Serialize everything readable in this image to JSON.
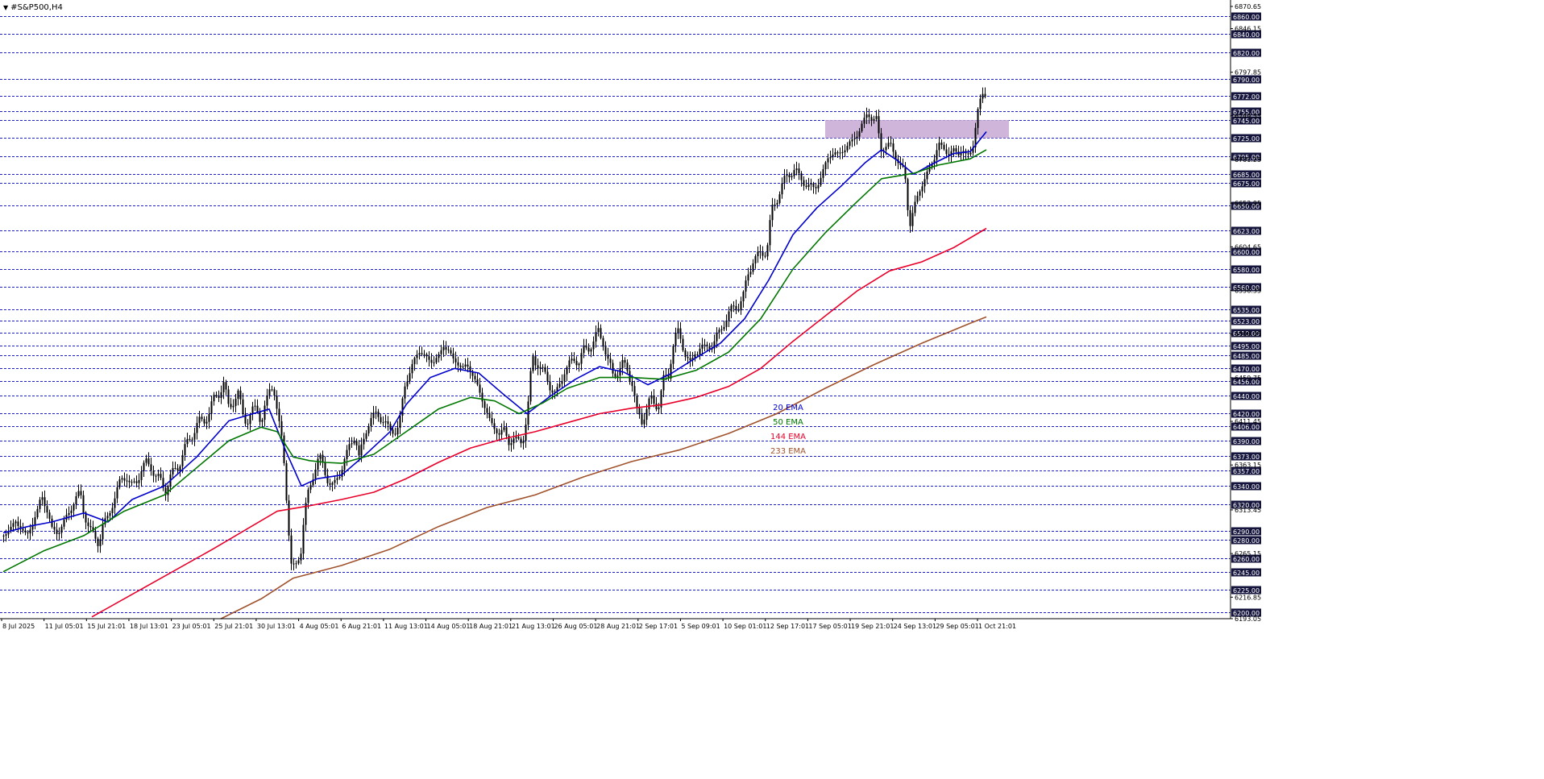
{
  "window": {
    "title": "#S&P500,H4"
  },
  "chart_data": {
    "type": "candlestick",
    "symbol": "#S&P500",
    "timeframe": "H4",
    "ylim": [
      6193.05,
      6870.65
    ],
    "grid": true,
    "x_tick_labels": [
      "8 Jul 2025",
      "11 Jul 05:01",
      "15 Jul 21:01",
      "18 Jul 13:01",
      "23 Jul 05:01",
      "25 Jul 21:01",
      "30 Jul 13:01",
      "4 Aug 05:01",
      "6 Aug 21:01",
      "11 Aug 13:01",
      "14 Aug 05:01",
      "18 Aug 21:01",
      "21 Aug 13:01",
      "26 Aug 05:01",
      "28 Aug 21:01",
      "2 Sep 17:01",
      "5 Sep 09:01",
      "10 Sep 01:01",
      "12 Sep 17:01",
      "17 Sep 05:01",
      "19 Sep 21:01",
      "24 Sep 13:01",
      "29 Sep 05:01",
      "1 Oct 21:01"
    ],
    "price_levels": [
      "6860.00",
      "6840.00",
      "6820.00",
      "6790.00",
      "6772.00",
      "6755.00",
      "6745.00",
      "6725.00",
      "6705.00",
      "6685.00",
      "6675.00",
      "6650.00",
      "6623.00",
      "6600.00",
      "6580.00",
      "6560.00",
      "6535.00",
      "6523.00",
      "6510.00",
      "6495.00",
      "6485.00",
      "6470.00",
      "6456.00",
      "6440.00",
      "6420.00",
      "6406.00",
      "6390.00",
      "6373.00",
      "6357.00",
      "6340.00",
      "6320.00",
      "6290.00",
      "6280.00",
      "6260.00",
      "6245.00",
      "6225.00",
      "6200.00"
    ],
    "scale_labels": [
      "6870.65",
      "6846.15",
      "6797.85",
      "6749.55",
      "6701.25",
      "6652.95",
      "6604.65",
      "6556.35",
      "6508.05",
      "6459.75",
      "6411.45",
      "6363.15",
      "6313.45",
      "6265.15",
      "6216.85",
      "6193.05"
    ],
    "zone": {
      "low": 6725,
      "high": 6745,
      "color": "#c8a8d4"
    },
    "candle_color": "#000000",
    "close_path": [
      [
        0,
        6285
      ],
      [
        7,
        6292
      ],
      [
        15,
        6300
      ],
      [
        22,
        6293
      ],
      [
        29,
        6284
      ],
      [
        35,
        6297
      ],
      [
        43,
        6315
      ],
      [
        47,
        6330
      ],
      [
        55,
        6310
      ],
      [
        60,
        6292
      ],
      [
        67,
        6288
      ],
      [
        75,
        6300
      ],
      [
        82,
        6312
      ],
      [
        89,
        6326
      ],
      [
        95,
        6333
      ],
      [
        100,
        6308
      ],
      [
        106,
        6294
      ],
      [
        112,
        6285
      ],
      [
        118,
        6276
      ],
      [
        123,
        6296
      ],
      [
        128,
        6302
      ],
      [
        134,
        6318
      ],
      [
        140,
        6332
      ],
      [
        146,
        6348
      ],
      [
        152,
        6352
      ],
      [
        158,
        6338
      ],
      [
        164,
        6344
      ],
      [
        171,
        6358
      ],
      [
        177,
        6365
      ],
      [
        183,
        6362
      ],
      [
        189,
        6350
      ],
      [
        195,
        6345
      ],
      [
        201,
        6336
      ],
      [
        206,
        6347
      ],
      [
        212,
        6357
      ],
      [
        218,
        6365
      ],
      [
        224,
        6378
      ],
      [
        230,
        6392
      ],
      [
        237,
        6402
      ],
      [
        243,
        6410
      ],
      [
        249,
        6414
      ],
      [
        255,
        6420
      ],
      [
        262,
        6438
      ],
      [
        268,
        6445
      ],
      [
        273,
        6452
      ],
      [
        279,
        6428
      ],
      [
        285,
        6435
      ],
      [
        291,
        6440
      ],
      [
        297,
        6420
      ],
      [
        302,
        6412
      ],
      [
        308,
        6420
      ],
      [
        314,
        6428
      ],
      [
        320,
        6412
      ],
      [
        326,
        6430
      ],
      [
        332,
        6455
      ],
      [
        336,
        6445
      ],
      [
        341,
        6410
      ],
      [
        345,
        6392
      ],
      [
        349,
        6360
      ],
      [
        353,
        6300
      ],
      [
        357,
        6250
      ],
      [
        361,
        6247
      ],
      [
        365,
        6260
      ],
      [
        369,
        6270
      ],
      [
        373,
        6305
      ],
      [
        378,
        6332
      ],
      [
        383,
        6350
      ],
      [
        389,
        6366
      ],
      [
        394,
        6370
      ],
      [
        399,
        6356
      ],
      [
        404,
        6342
      ],
      [
        409,
        6338
      ],
      [
        414,
        6350
      ],
      [
        419,
        6358
      ],
      [
        425,
        6372
      ],
      [
        430,
        6388
      ],
      [
        436,
        6395
      ],
      [
        441,
        6370
      ],
      [
        445,
        6387
      ],
      [
        451,
        6405
      ],
      [
        457,
        6415
      ],
      [
        463,
        6422
      ],
      [
        469,
        6412
      ],
      [
        475,
        6408
      ],
      [
        481,
        6402
      ],
      [
        487,
        6398
      ],
      [
        491,
        6408
      ],
      [
        497,
        6450
      ],
      [
        503,
        6462
      ],
      [
        509,
        6478
      ],
      [
        515,
        6490
      ],
      [
        521,
        6485
      ],
      [
        527,
        6480
      ],
      [
        533,
        6477
      ],
      [
        540,
        6484
      ],
      [
        546,
        6495
      ],
      [
        552,
        6490
      ],
      [
        558,
        6480
      ],
      [
        563,
        6476
      ],
      [
        569,
        6470
      ],
      [
        575,
        6474
      ],
      [
        581,
        6465
      ],
      [
        586,
        6455
      ],
      [
        592,
        6440
      ],
      [
        598,
        6426
      ],
      [
        604,
        6410
      ],
      [
        609,
        6404
      ],
      [
        615,
        6398
      ],
      [
        621,
        6402
      ],
      [
        627,
        6388
      ],
      [
        633,
        6392
      ],
      [
        639,
        6390
      ],
      [
        644,
        6388
      ],
      [
        650,
        6420
      ],
      [
        656,
        6485
      ],
      [
        661,
        6475
      ],
      [
        667,
        6470
      ],
      [
        673,
        6462
      ],
      [
        679,
        6448
      ],
      [
        685,
        6440
      ],
      [
        690,
        6452
      ],
      [
        696,
        6468
      ],
      [
        702,
        6474
      ],
      [
        708,
        6480
      ],
      [
        714,
        6478
      ],
      [
        720,
        6490
      ],
      [
        726,
        6493
      ],
      [
        732,
        6500
      ],
      [
        738,
        6510
      ],
      [
        744,
        6500
      ],
      [
        750,
        6478
      ],
      [
        756,
        6462
      ],
      [
        762,
        6468
      ],
      [
        768,
        6474
      ],
      [
        774,
        6468
      ],
      [
        780,
        6455
      ],
      [
        786,
        6420
      ],
      [
        792,
        6412
      ],
      [
        797,
        6425
      ],
      [
        803,
        6435
      ],
      [
        808,
        6430
      ],
      [
        813,
        6432
      ],
      [
        819,
        6456
      ],
      [
        825,
        6462
      ],
      [
        830,
        6495
      ],
      [
        836,
        6510
      ],
      [
        842,
        6498
      ],
      [
        847,
        6486
      ],
      [
        853,
        6470
      ],
      [
        858,
        6488
      ],
      [
        864,
        6495
      ],
      [
        870,
        6490
      ],
      [
        876,
        6496
      ],
      [
        882,
        6500
      ],
      [
        888,
        6508
      ],
      [
        894,
        6522
      ],
      [
        900,
        6530
      ],
      [
        906,
        6537
      ],
      [
        912,
        6540
      ],
      [
        918,
        6550
      ],
      [
        924,
        6575
      ],
      [
        930,
        6590
      ],
      [
        936,
        6594
      ],
      [
        942,
        6598
      ],
      [
        947,
        6600
      ],
      [
        953,
        6645
      ],
      [
        959,
        6655
      ],
      [
        965,
        6672
      ],
      [
        970,
        6680
      ],
      [
        976,
        6685
      ],
      [
        982,
        6692
      ],
      [
        988,
        6680
      ],
      [
        994,
        6675
      ],
      [
        1000,
        6672
      ],
      [
        1006,
        6668
      ],
      [
        1012,
        6678
      ],
      [
        1018,
        6690
      ],
      [
        1024,
        6705
      ],
      [
        1030,
        6710
      ],
      [
        1036,
        6705
      ],
      [
        1042,
        6712
      ],
      [
        1048,
        6718
      ],
      [
        1054,
        6722
      ],
      [
        1060,
        6730
      ],
      [
        1066,
        6742
      ],
      [
        1072,
        6752
      ],
      [
        1078,
        6745
      ],
      [
        1084,
        6748
      ],
      [
        1088,
        6710
      ],
      [
        1094,
        6715
      ],
      [
        1100,
        6720
      ],
      [
        1106,
        6705
      ],
      [
        1112,
        6695
      ],
      [
        1118,
        6690
      ],
      [
        1124,
        6625
      ],
      [
        1130,
        6650
      ],
      [
        1136,
        6665
      ],
      [
        1142,
        6678
      ],
      [
        1148,
        6690
      ],
      [
        1154,
        6700
      ],
      [
        1160,
        6720
      ],
      [
        1166,
        6712
      ],
      [
        1172,
        6708
      ],
      [
        1178,
        6712
      ],
      [
        1184,
        6705
      ],
      [
        1190,
        6715
      ],
      [
        1196,
        6702
      ],
      [
        1202,
        6710
      ],
      [
        1208,
        6755
      ],
      [
        1214,
        6770
      ],
      [
        1220,
        6772
      ]
    ],
    "series": [
      {
        "name": "20 EMA",
        "color": "#0000cc",
        "values": [
          [
            0,
            6288
          ],
          [
            30,
            6295
          ],
          [
            60,
            6300
          ],
          [
            100,
            6310
          ],
          [
            130,
            6300
          ],
          [
            160,
            6325
          ],
          [
            200,
            6340
          ],
          [
            240,
            6372
          ],
          [
            280,
            6412
          ],
          [
            310,
            6420
          ],
          [
            330,
            6425
          ],
          [
            350,
            6380
          ],
          [
            370,
            6340
          ],
          [
            390,
            6348
          ],
          [
            420,
            6352
          ],
          [
            450,
            6375
          ],
          [
            480,
            6400
          ],
          [
            500,
            6430
          ],
          [
            530,
            6460
          ],
          [
            560,
            6470
          ],
          [
            590,
            6465
          ],
          [
            620,
            6442
          ],
          [
            650,
            6420
          ],
          [
            680,
            6440
          ],
          [
            710,
            6458
          ],
          [
            740,
            6472
          ],
          [
            770,
            6466
          ],
          [
            800,
            6452
          ],
          [
            830,
            6465
          ],
          [
            860,
            6482
          ],
          [
            890,
            6498
          ],
          [
            920,
            6525
          ],
          [
            950,
            6568
          ],
          [
            980,
            6618
          ],
          [
            1010,
            6648
          ],
          [
            1040,
            6672
          ],
          [
            1070,
            6698
          ],
          [
            1090,
            6712
          ],
          [
            1110,
            6700
          ],
          [
            1130,
            6685
          ],
          [
            1150,
            6695
          ],
          [
            1180,
            6708
          ],
          [
            1200,
            6710
          ],
          [
            1220,
            6732
          ]
        ]
      },
      {
        "name": "50 EMA",
        "color": "#007700",
        "values": [
          [
            0,
            6245
          ],
          [
            50,
            6268
          ],
          [
            100,
            6285
          ],
          [
            150,
            6312
          ],
          [
            200,
            6330
          ],
          [
            240,
            6360
          ],
          [
            280,
            6390
          ],
          [
            320,
            6405
          ],
          [
            340,
            6400
          ],
          [
            360,
            6372
          ],
          [
            380,
            6368
          ],
          [
            400,
            6366
          ],
          [
            420,
            6365
          ],
          [
            460,
            6375
          ],
          [
            500,
            6400
          ],
          [
            540,
            6425
          ],
          [
            580,
            6438
          ],
          [
            610,
            6434
          ],
          [
            640,
            6420
          ],
          [
            670,
            6432
          ],
          [
            700,
            6448
          ],
          [
            740,
            6460
          ],
          [
            780,
            6460
          ],
          [
            820,
            6458
          ],
          [
            860,
            6468
          ],
          [
            900,
            6488
          ],
          [
            940,
            6525
          ],
          [
            980,
            6580
          ],
          [
            1020,
            6620
          ],
          [
            1060,
            6655
          ],
          [
            1090,
            6680
          ],
          [
            1130,
            6686
          ],
          [
            1160,
            6695
          ],
          [
            1200,
            6702
          ],
          [
            1220,
            6712
          ]
        ]
      },
      {
        "name": "144 EMA",
        "color": "#e8002a",
        "values": [
          [
            110,
            6195
          ],
          [
            180,
            6230
          ],
          [
            260,
            6270
          ],
          [
            340,
            6312
          ],
          [
            380,
            6318
          ],
          [
            420,
            6325
          ],
          [
            460,
            6333
          ],
          [
            500,
            6348
          ],
          [
            540,
            6366
          ],
          [
            580,
            6382
          ],
          [
            620,
            6392
          ],
          [
            660,
            6400
          ],
          [
            700,
            6410
          ],
          [
            740,
            6420
          ],
          [
            780,
            6426
          ],
          [
            820,
            6430
          ],
          [
            860,
            6438
          ],
          [
            900,
            6450
          ],
          [
            940,
            6470
          ],
          [
            980,
            6500
          ],
          [
            1020,
            6528
          ],
          [
            1060,
            6556
          ],
          [
            1100,
            6578
          ],
          [
            1140,
            6588
          ],
          [
            1180,
            6604
          ],
          [
            1220,
            6625
          ]
        ]
      },
      {
        "name": "233 EMA",
        "color": "#a0522d",
        "values": [
          [
            270,
            6193
          ],
          [
            320,
            6215
          ],
          [
            360,
            6238
          ],
          [
            420,
            6252
          ],
          [
            480,
            6270
          ],
          [
            540,
            6295
          ],
          [
            600,
            6316
          ],
          [
            660,
            6330
          ],
          [
            720,
            6350
          ],
          [
            780,
            6367
          ],
          [
            840,
            6380
          ],
          [
            900,
            6398
          ],
          [
            960,
            6420
          ],
          [
            1020,
            6448
          ],
          [
            1080,
            6474
          ],
          [
            1140,
            6498
          ],
          [
            1200,
            6520
          ],
          [
            1220,
            6527
          ]
        ]
      }
    ]
  }
}
